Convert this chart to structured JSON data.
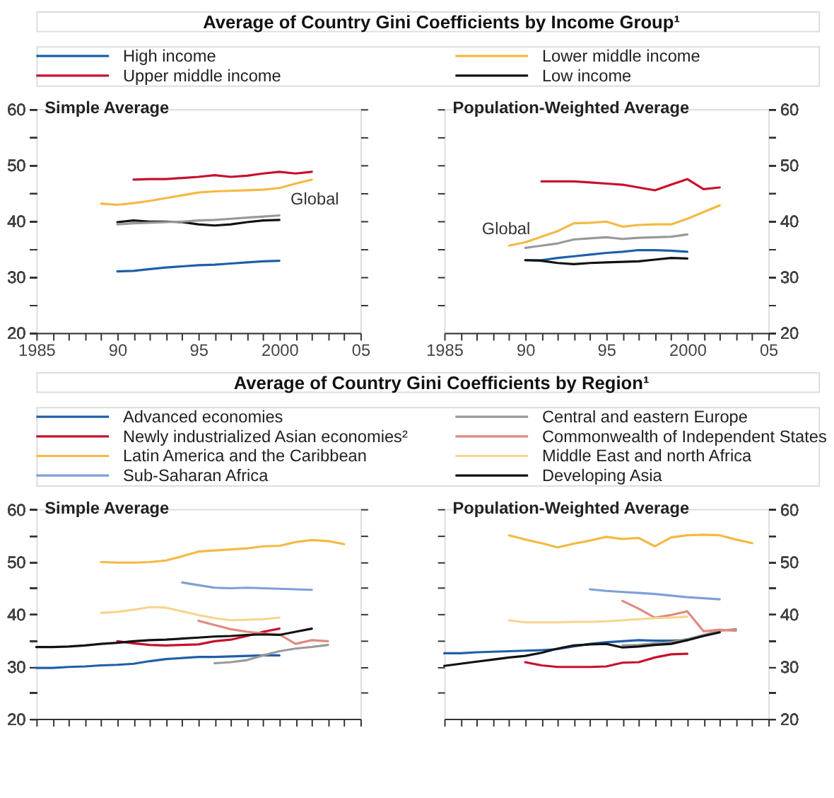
{
  "chart_data": [
    {
      "type": "line",
      "title": "Average of Country Gini Coefficients by Income Group¹",
      "subtitle": "Simple Average",
      "legend": "top",
      "xlim": [
        1985,
        2005
      ],
      "ylim": [
        20,
        60
      ],
      "xticks": [
        1985,
        {
          "value": 1986,
          "label": null
        },
        {
          "value": 1987,
          "label": null
        },
        {
          "value": 1988,
          "label": null
        },
        {
          "value": 1989,
          "label": null
        },
        {
          "value": 1990,
          "label": "90"
        },
        {
          "value": 1991,
          "label": null
        },
        {
          "value": 1992,
          "label": null
        },
        {
          "value": 1993,
          "label": null
        },
        {
          "value": 1994,
          "label": null
        },
        {
          "value": 1995,
          "label": "95"
        },
        {
          "value": 1996,
          "label": null
        },
        {
          "value": 1997,
          "label": null
        },
        {
          "value": 1998,
          "label": null
        },
        {
          "value": 1999,
          "label": null
        },
        2000,
        {
          "value": 2001,
          "label": null
        },
        {
          "value": 2002,
          "label": null
        },
        {
          "value": 2003,
          "label": null
        },
        {
          "value": 2004,
          "label": null
        },
        {
          "value": 2005,
          "label": "05"
        }
      ],
      "yticks": [
        20,
        {
          "value": 25,
          "label": null
        },
        30,
        {
          "value": 35,
          "label": null
        },
        40,
        {
          "value": 45,
          "label": null
        },
        50,
        {
          "value": 55,
          "label": null
        },
        60
      ],
      "annotations": [
        {
          "text": "Global",
          "x": 2000,
          "y": 41.0
        }
      ],
      "series": [
        {
          "name": "High income",
          "color": "#1f5fa8",
          "x": [
            1990,
            1991,
            1992,
            1993,
            1994,
            1995,
            1996,
            1997,
            1998,
            1999,
            2000
          ],
          "values": [
            31.0,
            31.1,
            31.4,
            31.7,
            31.9,
            32.1,
            32.2,
            32.4,
            32.6,
            32.8,
            32.9
          ]
        },
        {
          "name": "Lower middle income",
          "color": "#f5b942",
          "x": [
            1989,
            1990,
            1991,
            1992,
            1993,
            1994,
            1995,
            1996,
            1997,
            1998,
            1999,
            2000,
            2001,
            2002
          ],
          "values": [
            43.1,
            42.9,
            43.2,
            43.6,
            44.1,
            44.6,
            45.1,
            45.3,
            45.4,
            45.5,
            45.6,
            45.9,
            46.7,
            47.4
          ]
        },
        {
          "name": "Upper middle income",
          "color": "#c8102e",
          "x": [
            1991,
            1992,
            1993,
            1994,
            1995,
            1996,
            1997,
            1998,
            1999,
            2000,
            2001,
            2002
          ],
          "values": [
            47.4,
            47.5,
            47.5,
            47.7,
            47.9,
            48.2,
            47.9,
            48.1,
            48.5,
            48.8,
            48.5,
            48.8
          ]
        },
        {
          "name": "Low income",
          "color": "#111111",
          "x": [
            1990,
            1991,
            1992,
            1993,
            1994,
            1995,
            1996,
            1997,
            1998,
            1999,
            2000
          ],
          "values": [
            39.8,
            40.1,
            39.9,
            39.9,
            39.8,
            39.4,
            39.2,
            39.4,
            39.8,
            40.1,
            40.2
          ]
        },
        {
          "color": "#999999",
          "x": [
            1990,
            1991,
            1992,
            1993,
            1994,
            1995,
            1996,
            1997,
            1998,
            1999,
            2000
          ],
          "values": [
            39.4,
            39.6,
            39.7,
            39.8,
            39.9,
            40.1,
            40.2,
            40.4,
            40.6,
            40.8,
            41.0
          ]
        }
      ]
    },
    {
      "type": "line",
      "subtitle": "Population-Weighted Average",
      "xlim": [
        1985,
        2005
      ],
      "ylim": [
        20,
        60
      ],
      "xticks": [
        1985,
        {
          "value": 1986,
          "label": null
        },
        {
          "value": 1987,
          "label": null
        },
        {
          "value": 1988,
          "label": null
        },
        {
          "value": 1989,
          "label": null
        },
        {
          "value": 1990,
          "label": "90"
        },
        {
          "value": 1991,
          "label": null
        },
        {
          "value": 1992,
          "label": null
        },
        {
          "value": 1993,
          "label": null
        },
        {
          "value": 1994,
          "label": null
        },
        {
          "value": 1995,
          "label": "95"
        },
        {
          "value": 1996,
          "label": null
        },
        {
          "value": 1997,
          "label": null
        },
        {
          "value": 1998,
          "label": null
        },
        {
          "value": 1999,
          "label": null
        },
        2000,
        {
          "value": 2001,
          "label": null
        },
        {
          "value": 2002,
          "label": null
        },
        {
          "value": 2003,
          "label": null
        },
        {
          "value": 2004,
          "label": null
        },
        {
          "value": 2005,
          "label": "05"
        }
      ],
      "yticks": [
        20,
        {
          "value": 25,
          "label": null
        },
        30,
        {
          "value": 35,
          "label": null
        },
        40,
        {
          "value": 45,
          "label": null
        },
        50,
        {
          "value": 55,
          "label": null
        },
        60
      ],
      "annotations": [
        {
          "text": "Global",
          "x": 1991,
          "y": 35.6
        }
      ],
      "series": [
        {
          "name": "High income",
          "color": "#1f5fa8",
          "x": [
            1990,
            1991,
            1992,
            1993,
            1994,
            1995,
            1996,
            1997,
            1998,
            1999,
            2000
          ],
          "values": [
            33.0,
            33.0,
            33.4,
            33.7,
            34.0,
            34.3,
            34.5,
            34.8,
            34.8,
            34.7,
            34.5
          ]
        },
        {
          "name": "Lower middle income",
          "color": "#f5b942",
          "x": [
            1989,
            1990,
            1991,
            1992,
            1993,
            1994,
            1995,
            1996,
            1997,
            1998,
            1999,
            2000,
            2001,
            2002
          ],
          "values": [
            35.6,
            36.2,
            37.2,
            38.2,
            39.6,
            39.7,
            39.9,
            39.0,
            39.3,
            39.4,
            39.4,
            40.4,
            41.6,
            42.8
          ]
        },
        {
          "name": "Upper middle income",
          "color": "#c8102e",
          "x": [
            1991,
            1992,
            1993,
            1994,
            1995,
            1996,
            1997,
            1998,
            1999,
            2000,
            2001,
            2002
          ],
          "values": [
            47.1,
            47.1,
            47.1,
            46.9,
            46.7,
            46.5,
            46.0,
            45.5,
            46.5,
            47.5,
            45.7,
            46.0
          ]
        },
        {
          "name": "Low income",
          "color": "#111111",
          "x": [
            1990,
            1991,
            1992,
            1993,
            1994,
            1995,
            1996,
            1997,
            1998,
            1999,
            2000
          ],
          "values": [
            33.0,
            32.9,
            32.5,
            32.3,
            32.5,
            32.6,
            32.7,
            32.8,
            33.1,
            33.4,
            33.3
          ]
        },
        {
          "color": "#999999",
          "x": [
            1990,
            1991,
            1992,
            1993,
            1994,
            1995,
            1996,
            1997,
            1998,
            1999,
            2000
          ],
          "values": [
            35.2,
            35.6,
            36.0,
            36.7,
            36.9,
            37.1,
            36.8,
            37.0,
            37.1,
            37.2,
            37.6
          ]
        }
      ]
    },
    {
      "type": "line",
      "title": "Average of Country Gini Coefficients by Region¹",
      "subtitle": "Simple Average",
      "legend": "top",
      "tick_labels": "y",
      "xlim": [
        1985,
        2005
      ],
      "ylim": [
        20,
        60
      ],
      "xticks": [
        1985,
        {
          "value": 1986,
          "label": null
        },
        {
          "value": 1987,
          "label": null
        },
        {
          "value": 1988,
          "label": null
        },
        {
          "value": 1989,
          "label": null
        },
        {
          "value": 1990,
          "label": "90"
        },
        {
          "value": 1991,
          "label": null
        },
        {
          "value": 1992,
          "label": null
        },
        {
          "value": 1993,
          "label": null
        },
        {
          "value": 1994,
          "label": null
        },
        {
          "value": 1995,
          "label": "95"
        },
        {
          "value": 1996,
          "label": null
        },
        {
          "value": 1997,
          "label": null
        },
        {
          "value": 1998,
          "label": null
        },
        {
          "value": 1999,
          "label": null
        },
        2000,
        {
          "value": 2001,
          "label": null
        },
        {
          "value": 2002,
          "label": null
        },
        {
          "value": 2003,
          "label": null
        },
        {
          "value": 2004,
          "label": null
        },
        {
          "value": 2005,
          "label": "05"
        }
      ],
      "yticks": [
        20,
        {
          "value": 25,
          "label": null
        },
        30,
        {
          "value": 35,
          "label": null
        },
        40,
        {
          "value": 45,
          "label": null
        },
        50,
        {
          "value": 55,
          "label": null
        },
        60
      ],
      "series": [
        {
          "name": "Advanced economies",
          "color": "#1f5fa8",
          "x": [
            1985,
            1986,
            1987,
            1988,
            1989,
            1990,
            1991,
            1992,
            1993,
            1994,
            1995,
            1996,
            1997,
            1998,
            1999,
            2000
          ],
          "values": [
            29.7,
            29.7,
            29.9,
            30.0,
            30.2,
            30.3,
            30.5,
            31.0,
            31.4,
            31.6,
            31.8,
            31.8,
            31.9,
            32.0,
            32.1,
            32.1
          ]
        },
        {
          "name": "Central and eastern Europe",
          "color": "#999999",
          "x": [
            1996,
            1997,
            1998,
            1999,
            2000,
            2001,
            2002,
            2003
          ],
          "values": [
            30.6,
            30.8,
            31.2,
            32.1,
            32.9,
            33.4,
            33.7,
            34.1
          ]
        },
        {
          "name": "Newly industrialized Asian economies²",
          "color": "#c8102e",
          "x": [
            1990,
            1991,
            1992,
            1993,
            1994,
            1995,
            1996,
            1997,
            1998,
            1999,
            2000
          ],
          "values": [
            34.8,
            34.4,
            34.1,
            34.0,
            34.1,
            34.2,
            34.8,
            35.1,
            35.8,
            36.6,
            37.2
          ]
        },
        {
          "name": "Commonwealth of Independent States",
          "color": "#e08a80",
          "x": [
            1995,
            1996,
            1997,
            1998,
            1999,
            2000,
            2001,
            2002,
            2003
          ],
          "values": [
            38.7,
            37.9,
            37.1,
            36.6,
            36.3,
            36.1,
            34.3,
            35.0,
            34.8
          ]
        },
        {
          "name": "Latin America and the Caribbean",
          "color": "#f5b942",
          "x": [
            1989,
            1990,
            1991,
            1992,
            1993,
            1994,
            1995,
            1996,
            1997,
            1998,
            1999,
            2000,
            2001,
            2002,
            2003,
            2004
          ],
          "values": [
            49.9,
            49.8,
            49.8,
            49.9,
            50.2,
            51.0,
            51.9,
            52.1,
            52.3,
            52.5,
            52.9,
            53.0,
            53.7,
            54.1,
            53.9,
            53.3
          ]
        },
        {
          "name": "Middle East and north Africa",
          "color": "#f7d58f",
          "x": [
            1989,
            1990,
            1991,
            1992,
            1993,
            1994,
            1995,
            1996,
            1997,
            1998,
            1999,
            2000
          ],
          "values": [
            40.2,
            40.4,
            40.8,
            41.3,
            41.2,
            40.5,
            39.8,
            39.2,
            38.8,
            38.9,
            39.0,
            39.3
          ]
        },
        {
          "name": "Sub-Saharan Africa",
          "color": "#7f9fd8",
          "x": [
            1994,
            1995,
            1996,
            1997,
            1998,
            1999,
            2000,
            2001,
            2002
          ],
          "values": [
            46.0,
            45.5,
            45.0,
            44.9,
            45.0,
            44.9,
            44.8,
            44.7,
            44.6
          ]
        },
        {
          "name": "Developing Asia",
          "color": "#111111",
          "x": [
            1985,
            1986,
            1987,
            1988,
            1989,
            1990,
            1991,
            1992,
            1993,
            1994,
            1995,
            1996,
            1997,
            1998,
            1999,
            2000,
            2001,
            2002
          ],
          "values": [
            33.7,
            33.7,
            33.8,
            34.0,
            34.3,
            34.5,
            34.8,
            35.0,
            35.1,
            35.3,
            35.5,
            35.7,
            35.8,
            36.0,
            36.1,
            36.0,
            36.6,
            37.2
          ]
        }
      ]
    },
    {
      "type": "line",
      "subtitle": "Population-Weighted Average",
      "tick_labels": "y",
      "xlim": [
        1985,
        2005
      ],
      "ylim": [
        20,
        60
      ],
      "xticks": [
        1985,
        {
          "value": 1986,
          "label": null
        },
        {
          "value": 1987,
          "label": null
        },
        {
          "value": 1988,
          "label": null
        },
        {
          "value": 1989,
          "label": null
        },
        {
          "value": 1990,
          "label": "90"
        },
        {
          "value": 1991,
          "label": null
        },
        {
          "value": 1992,
          "label": null
        },
        {
          "value": 1993,
          "label": null
        },
        {
          "value": 1994,
          "label": null
        },
        {
          "value": 1995,
          "label": "95"
        },
        {
          "value": 1996,
          "label": null
        },
        {
          "value": 1997,
          "label": null
        },
        {
          "value": 1998,
          "label": null
        },
        {
          "value": 1999,
          "label": null
        },
        2000,
        {
          "value": 2001,
          "label": null
        },
        {
          "value": 2002,
          "label": null
        },
        {
          "value": 2003,
          "label": null
        },
        {
          "value": 2004,
          "label": null
        },
        {
          "value": 2005,
          "label": "05"
        }
      ],
      "yticks": [
        20,
        {
          "value": 25,
          "label": null
        },
        30,
        {
          "value": 35,
          "label": null
        },
        40,
        {
          "value": 45,
          "label": null
        },
        50,
        {
          "value": 55,
          "label": null
        },
        60
      ],
      "series": [
        {
          "name": "Advanced economies",
          "color": "#1f5fa8",
          "x": [
            1985,
            1986,
            1987,
            1988,
            1989,
            1990,
            1991,
            1992,
            1993,
            1994,
            1995,
            1996,
            1997,
            1998,
            1999,
            2000
          ],
          "values": [
            32.5,
            32.5,
            32.7,
            32.8,
            32.9,
            33.0,
            33.1,
            33.3,
            33.8,
            34.3,
            34.6,
            34.8,
            35.0,
            34.9,
            34.9,
            35.0
          ]
        },
        {
          "name": "Central and eastern Europe",
          "color": "#999999",
          "x": [
            1996,
            1997,
            1998,
            1999,
            2000,
            2001,
            2002,
            2003
          ],
          "values": [
            34.0,
            34.1,
            34.4,
            34.6,
            35.2,
            36.0,
            36.8,
            37.1
          ]
        },
        {
          "name": "Newly industrialized Asian economies²",
          "color": "#c8102e",
          "x": [
            1990,
            1991,
            1992,
            1993,
            1994,
            1995,
            1996,
            1997,
            1998,
            1999,
            2000
          ],
          "values": [
            30.8,
            30.2,
            29.9,
            29.9,
            29.9,
            30.0,
            30.7,
            30.8,
            31.7,
            32.3,
            32.4
          ]
        },
        {
          "name": "Commonwealth of Independent States",
          "color": "#e08a80",
          "x": [
            1996,
            1997,
            1998,
            1999,
            2000,
            2001,
            2002,
            2003
          ],
          "values": [
            42.5,
            41.0,
            39.3,
            39.8,
            40.5,
            36.7,
            37.0,
            36.8
          ]
        },
        {
          "name": "Latin America and the Caribbean",
          "color": "#f5b942",
          "x": [
            1989,
            1990,
            1991,
            1992,
            1993,
            1994,
            1995,
            1996,
            1997,
            1998,
            1999,
            2000,
            2001,
            2002,
            2003,
            2004
          ],
          "values": [
            55.0,
            54.2,
            53.5,
            52.7,
            53.4,
            54.0,
            54.7,
            54.3,
            54.5,
            52.9,
            54.6,
            55.0,
            55.1,
            55.0,
            54.2,
            53.5
          ]
        },
        {
          "name": "Middle East and north Africa",
          "color": "#f7d58f",
          "x": [
            1989,
            1990,
            1991,
            1992,
            1993,
            1994,
            1995,
            1996,
            1997,
            1998,
            1999,
            2000
          ],
          "values": [
            38.8,
            38.4,
            38.4,
            38.4,
            38.5,
            38.5,
            38.6,
            38.8,
            39.0,
            39.2,
            39.3,
            39.5
          ]
        },
        {
          "name": "Sub-Saharan Africa",
          "color": "#7f9fd8",
          "x": [
            1994,
            1995,
            1996,
            1997,
            1998,
            1999,
            2000,
            2001,
            2002
          ],
          "values": [
            44.7,
            44.4,
            44.2,
            44.0,
            43.8,
            43.5,
            43.2,
            43.0,
            42.8
          ]
        },
        {
          "name": "Developing Asia",
          "color": "#111111",
          "x": [
            1985,
            1986,
            1987,
            1988,
            1989,
            1990,
            1991,
            1992,
            1993,
            1994,
            1995,
            1996,
            1997,
            1998,
            1999,
            2000,
            2001,
            2002
          ],
          "values": [
            30.1,
            30.5,
            30.9,
            31.3,
            31.7,
            32.0,
            32.6,
            33.4,
            34.0,
            34.2,
            34.3,
            33.6,
            33.8,
            34.1,
            34.3,
            35.0,
            35.8,
            36.5
          ]
        }
      ]
    }
  ]
}
